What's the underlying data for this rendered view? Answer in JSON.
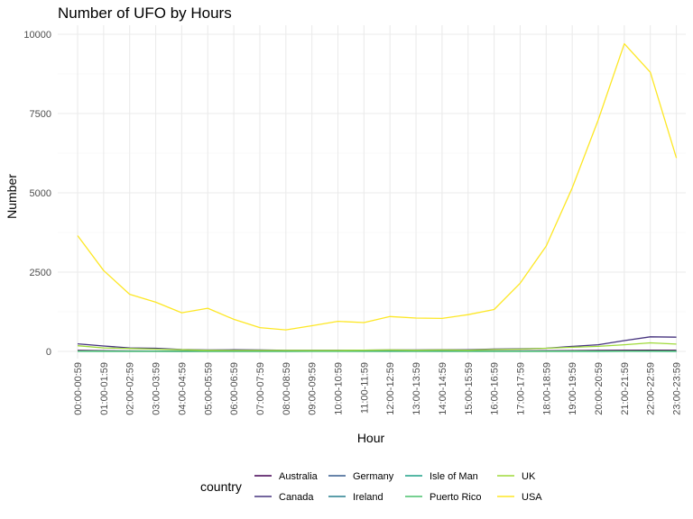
{
  "chart_data": {
    "type": "line",
    "title": "Number of UFO by Hours",
    "xlabel": "Hour",
    "ylabel": "Number",
    "ylim": [
      0,
      10000
    ],
    "yticks": [
      0,
      2500,
      5000,
      7500,
      10000
    ],
    "grid": true,
    "legend_position": "bottom",
    "legend_title": "country",
    "categories": [
      "00:00-00:59",
      "01:00-01:59",
      "02:00-02:59",
      "03:00-03:59",
      "04:00-04:59",
      "05:00-05:59",
      "06:00-06:59",
      "07:00-07:59",
      "08:00-08:59",
      "09:00-09:59",
      "10:00-10:59",
      "11:00-11:59",
      "12:00-12:59",
      "13:00-13:59",
      "14:00-14:59",
      "15:00-15:59",
      "16:00-16:59",
      "17:00-17:59",
      "18:00-18:59",
      "19:00-19:59",
      "20:00-20:59",
      "21:00-21:59",
      "22:00-22:59",
      "23:00-23:59"
    ],
    "series": [
      {
        "name": "Australia",
        "color": "#440154",
        "values": [
          30,
          20,
          15,
          12,
          10,
          8,
          8,
          8,
          8,
          8,
          10,
          10,
          12,
          12,
          15,
          15,
          15,
          18,
          20,
          25,
          30,
          35,
          40,
          35
        ]
      },
      {
        "name": "Canada",
        "color": "#46337E",
        "values": [
          240,
          170,
          110,
          100,
          60,
          45,
          50,
          45,
          35,
          35,
          35,
          40,
          45,
          45,
          55,
          50,
          75,
          80,
          100,
          160,
          210,
          340,
          460,
          450
        ]
      },
      {
        "name": "Germany",
        "color": "#365C8D",
        "values": [
          5,
          3,
          2,
          2,
          2,
          2,
          2,
          3,
          3,
          3,
          3,
          3,
          3,
          3,
          3,
          3,
          3,
          3,
          3,
          3,
          3,
          3,
          4,
          4
        ]
      },
      {
        "name": "Ireland",
        "color": "#277F8E",
        "values": [
          3,
          2,
          2,
          2,
          1,
          1,
          1,
          1,
          1,
          2,
          2,
          2,
          2,
          2,
          2,
          2,
          2,
          2,
          2,
          2,
          2,
          2,
          3,
          2
        ]
      },
      {
        "name": "Isle of Man",
        "color": "#1FA187",
        "values": [
          2,
          1,
          1,
          1,
          1,
          1,
          1,
          1,
          1,
          1,
          1,
          1,
          1,
          1,
          1,
          1,
          1,
          1,
          1,
          1,
          1,
          2,
          2,
          1
        ]
      },
      {
        "name": "Puerto Rico",
        "color": "#4AC16D",
        "values": [
          10,
          5,
          4,
          3,
          3,
          3,
          3,
          3,
          3,
          3,
          3,
          4,
          4,
          4,
          4,
          4,
          5,
          5,
          6,
          8,
          10,
          12,
          14,
          12
        ]
      },
      {
        "name": "UK",
        "color": "#9FDA3A",
        "values": [
          180,
          110,
          90,
          70,
          50,
          35,
          30,
          30,
          30,
          30,
          30,
          40,
          45,
          40,
          45,
          40,
          60,
          70,
          100,
          130,
          160,
          210,
          270,
          230
        ]
      },
      {
        "name": "USA",
        "color": "#FDE725",
        "values": [
          3650,
          2550,
          1800,
          1550,
          1220,
          1360,
          1010,
          750,
          680,
          810,
          950,
          910,
          1100,
          1050,
          1040,
          1160,
          1320,
          2150,
          3320,
          5150,
          7300,
          9700,
          8800,
          6100
        ]
      }
    ]
  }
}
